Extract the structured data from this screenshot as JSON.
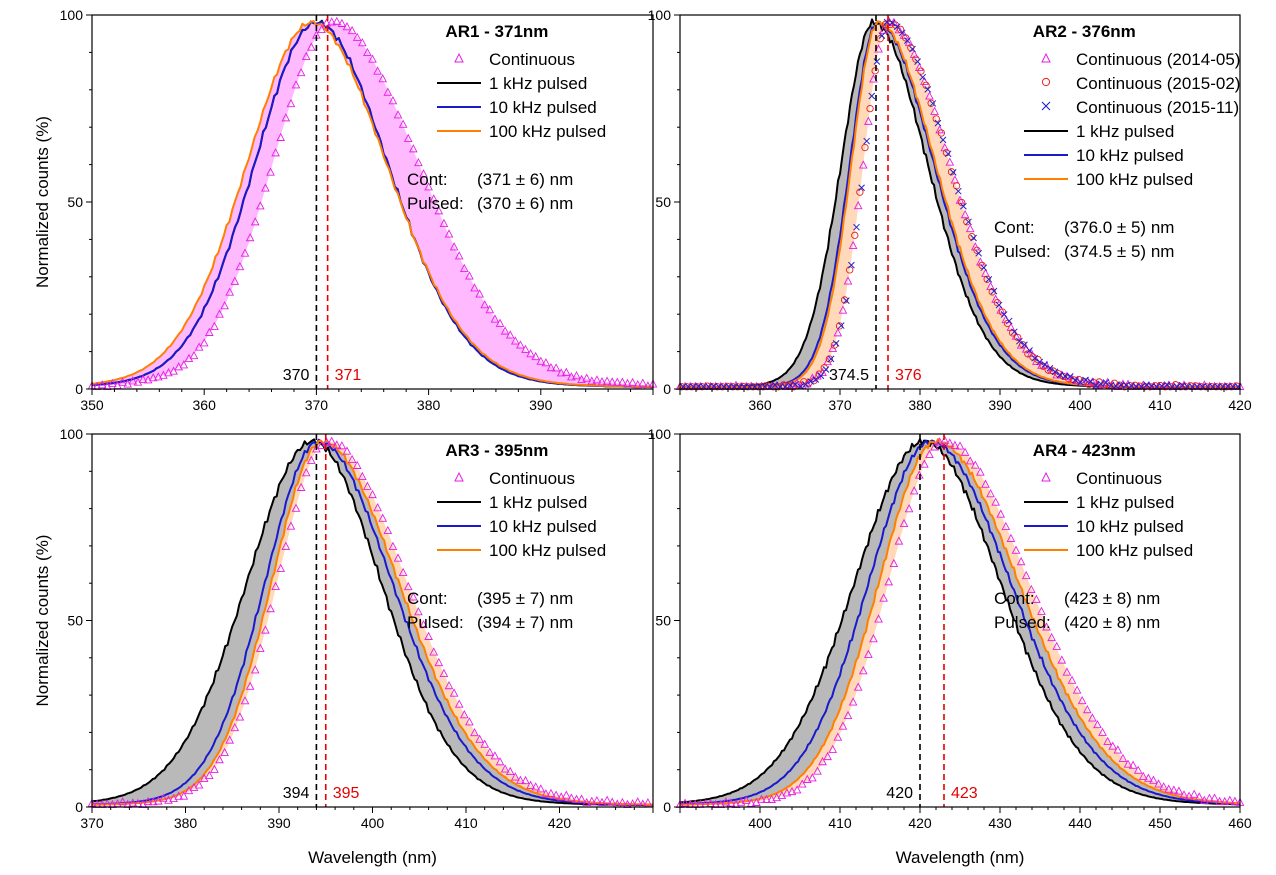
{
  "figure": {
    "ylabel": "Normalized counts (%)",
    "xlabel": "Wavelength (nm)"
  },
  "colors": {
    "continuous": "#e61ee6",
    "pulsed_1k": "#000000",
    "pulsed_10k": "#1a1acc",
    "pulsed_100k": "#ff8000",
    "cont_fill": "#ff66ff",
    "pulsed_fill": "#808080",
    "orange_fill": "#ffa050",
    "cont_2015_02": "#e62020",
    "cont_2015_11": "#2020cc",
    "peak_pulsed_line": "#000000",
    "peak_cont_line": "#e60000"
  },
  "chart_data": [
    {
      "type": "line",
      "id": "AR1",
      "title": "AR1 - 371nm",
      "xlabel": "",
      "ylabel": "Normalized counts (%)",
      "xlim": [
        350,
        400
      ],
      "ylim": [
        0,
        100
      ],
      "xticks": [
        350,
        360,
        370,
        380,
        390
      ],
      "yticks": [
        0,
        50,
        100
      ],
      "legend_position": "top-right",
      "shaded": [
        "continuous_vs_100kHz"
      ],
      "series": [
        {
          "name": "Continuous",
          "style": "marker-triangle",
          "color": "continuous",
          "center": 371.5,
          "sigma_left": 5.6,
          "sigma_right": 7.9
        },
        {
          "name": "1 kHz pulsed",
          "style": "line",
          "color": "pulsed_1k",
          "center": 370.0,
          "sigma_left": 5.7,
          "sigma_right": 6.6
        },
        {
          "name": "10 kHz pulsed",
          "style": "line",
          "color": "pulsed_10k",
          "center": 370.0,
          "sigma_left": 5.7,
          "sigma_right": 6.6
        },
        {
          "name": "100 kHz pulsed",
          "style": "line",
          "color": "pulsed_100k",
          "center": 369.6,
          "sigma_left": 6.0,
          "sigma_right": 6.9
        }
      ],
      "stats": {
        "cont_label": "Cont:",
        "cont_value": "(371 ± 6) nm",
        "pulsed_label": "Pulsed:",
        "pulsed_value": "(370 ± 6) nm"
      },
      "peaks": {
        "pulsed": 370,
        "pulsed_label": "370",
        "cont": 371,
        "cont_label": "371"
      }
    },
    {
      "type": "line",
      "id": "AR2",
      "title": "AR2 - 376nm",
      "xlabel": "",
      "ylabel": "",
      "xlim": [
        350,
        420
      ],
      "ylim": [
        0,
        100
      ],
      "xticks": [
        360,
        370,
        380,
        390,
        400,
        410,
        420
      ],
      "yticks": [
        0,
        50,
        100
      ],
      "legend_position": "top-right",
      "shaded": [
        "continuous_vs_100kHz",
        "1kHz_vs_100kHz"
      ],
      "series": [
        {
          "name": "Continuous (2014-05)",
          "style": "marker-triangle",
          "color": "continuous",
          "center": 376.0,
          "sigma_left": 3.2,
          "sigma_right": 8.0
        },
        {
          "name": "Continuous (2015-02)",
          "style": "marker-circle",
          "color": "cont_2015_02",
          "center": 376.0,
          "sigma_left": 3.2,
          "sigma_right": 8.0
        },
        {
          "name": "Continuous (2015-11)",
          "style": "marker-x",
          "color": "cont_2015_11",
          "center": 376.0,
          "sigma_left": 3.1,
          "sigma_right": 8.1
        },
        {
          "name": "1 kHz pulsed",
          "style": "line",
          "color": "pulsed_1k",
          "center": 374.2,
          "sigma_left": 4.2,
          "sigma_right": 7.0
        },
        {
          "name": "10 kHz pulsed",
          "style": "line",
          "color": "pulsed_10k",
          "center": 374.7,
          "sigma_left": 3.6,
          "sigma_right": 7.3
        },
        {
          "name": "100 kHz pulsed",
          "style": "line",
          "color": "pulsed_100k",
          "center": 374.8,
          "sigma_left": 3.5,
          "sigma_right": 7.4
        }
      ],
      "stats": {
        "cont_label": "Cont:",
        "cont_value": "(376.0 ± 5) nm",
        "pulsed_label": "Pulsed:",
        "pulsed_value": "(374.5 ± 5) nm"
      },
      "peaks": {
        "pulsed": 374.5,
        "pulsed_label": "374.5",
        "cont": 376,
        "cont_label": "376"
      }
    },
    {
      "type": "line",
      "id": "AR3",
      "title": "AR3 - 395nm",
      "xlabel": "Wavelength (nm)",
      "ylabel": "Normalized counts (%)",
      "xlim": [
        370,
        430
      ],
      "ylim": [
        0,
        100
      ],
      "xticks": [
        370,
        380,
        390,
        400,
        410,
        420
      ],
      "yticks": [
        0,
        50,
        100
      ],
      "legend_position": "top-right",
      "shaded": [
        "continuous_vs_100kHz",
        "1kHz_vs_100kHz"
      ],
      "series": [
        {
          "name": "Continuous",
          "style": "marker-triangle",
          "color": "continuous",
          "center": 395.2,
          "sigma_left": 5.6,
          "sigma_right": 8.8
        },
        {
          "name": "1 kHz pulsed",
          "style": "line",
          "color": "pulsed_1k",
          "center": 393.6,
          "sigma_left": 7.3,
          "sigma_right": 7.6
        },
        {
          "name": "10 kHz pulsed",
          "style": "line",
          "color": "pulsed_10k",
          "center": 394.2,
          "sigma_left": 5.9,
          "sigma_right": 8.2
        },
        {
          "name": "100 kHz pulsed",
          "style": "line",
          "color": "pulsed_100k",
          "center": 394.6,
          "sigma_left": 5.6,
          "sigma_right": 8.5
        }
      ],
      "stats": {
        "cont_label": "Cont:",
        "cont_value": "(395 ± 7) nm",
        "pulsed_label": "Pulsed:",
        "pulsed_value": "(394 ± 7) nm"
      },
      "peaks": {
        "pulsed": 394,
        "pulsed_label": "394",
        "cont": 395,
        "cont_label": "395"
      }
    },
    {
      "type": "line",
      "id": "AR4",
      "title": "AR4 - 423nm",
      "xlabel": "Wavelength (nm)",
      "ylabel": "",
      "xlim": [
        390,
        460
      ],
      "ylim": [
        0,
        100
      ],
      "xticks": [
        400,
        410,
        420,
        430,
        440,
        450,
        460
      ],
      "yticks": [
        0,
        50,
        100
      ],
      "legend_position": "top-right",
      "shaded": [
        "continuous_vs_100kHz",
        "1kHz_vs_100kHz"
      ],
      "series": [
        {
          "name": "Continuous",
          "style": "marker-triangle",
          "color": "continuous",
          "center": 423.0,
          "sigma_left": 7.2,
          "sigma_right": 11.0
        },
        {
          "name": "1 kHz pulsed",
          "style": "line",
          "color": "pulsed_1k",
          "center": 420.5,
          "sigma_left": 9.0,
          "sigma_right": 9.9
        },
        {
          "name": "10 kHz pulsed",
          "style": "line",
          "color": "pulsed_10k",
          "center": 421.3,
          "sigma_left": 8.0,
          "sigma_right": 10.4
        },
        {
          "name": "100 kHz pulsed",
          "style": "line",
          "color": "pulsed_100k",
          "center": 422.0,
          "sigma_left": 7.4,
          "sigma_right": 10.7
        }
      ],
      "stats": {
        "cont_label": "Cont:",
        "cont_value": "(423 ± 8) nm",
        "pulsed_label": "Pulsed:",
        "pulsed_value": "(420 ± 8) nm"
      },
      "peaks": {
        "pulsed": 420,
        "pulsed_label": "420",
        "cont": 423,
        "cont_label": "423"
      }
    }
  ]
}
